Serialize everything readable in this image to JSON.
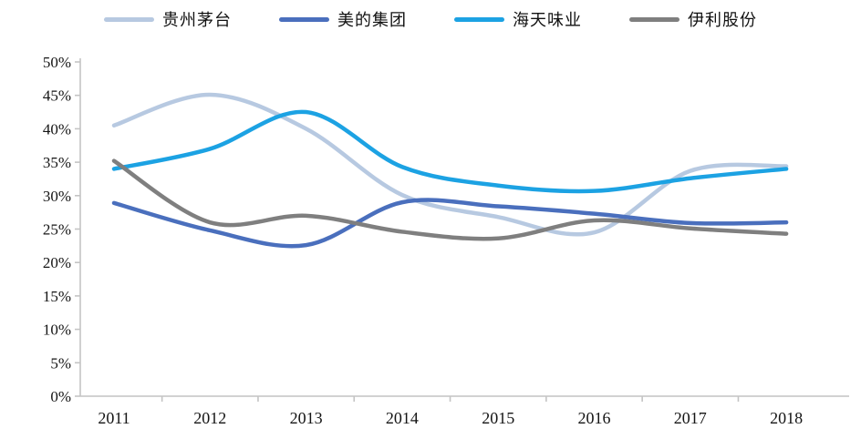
{
  "chart_data": {
    "type": "line",
    "title": "",
    "x_labels": [
      "2011",
      "2012",
      "2013",
      "2014",
      "2015",
      "2016",
      "2017",
      "2018"
    ],
    "y_tick_labels": [
      "0%",
      "5%",
      "10%",
      "15%",
      "20%",
      "25%",
      "30%",
      "35%",
      "40%",
      "45%",
      "50%"
    ],
    "ylim": [
      0,
      50
    ],
    "y_tick_step": 5,
    "unit": "%",
    "grid": false,
    "legend_position": "top",
    "series": [
      {
        "name": "贵州茅台",
        "color": "#b7c9e1",
        "values": [
          40.5,
          45.1,
          40.0,
          30.1,
          26.8,
          24.5,
          33.7,
          34.4
        ]
      },
      {
        "name": "美的集团",
        "color": "#4a6fbd",
        "values": [
          28.9,
          24.8,
          22.6,
          29.0,
          28.4,
          27.3,
          25.9,
          26.0
        ]
      },
      {
        "name": "海天味业",
        "color": "#1ca2e3",
        "values": [
          34.0,
          37.0,
          42.5,
          34.3,
          31.5,
          30.7,
          32.6,
          34.0
        ]
      },
      {
        "name": "伊利股份",
        "color": "#7f7f7f",
        "values": [
          35.2,
          26.0,
          27.0,
          24.6,
          23.6,
          26.3,
          25.1,
          24.3
        ]
      }
    ],
    "colors": {
      "axis": "#c4c4c4",
      "text": "#141414",
      "background": "#ffffff"
    }
  }
}
